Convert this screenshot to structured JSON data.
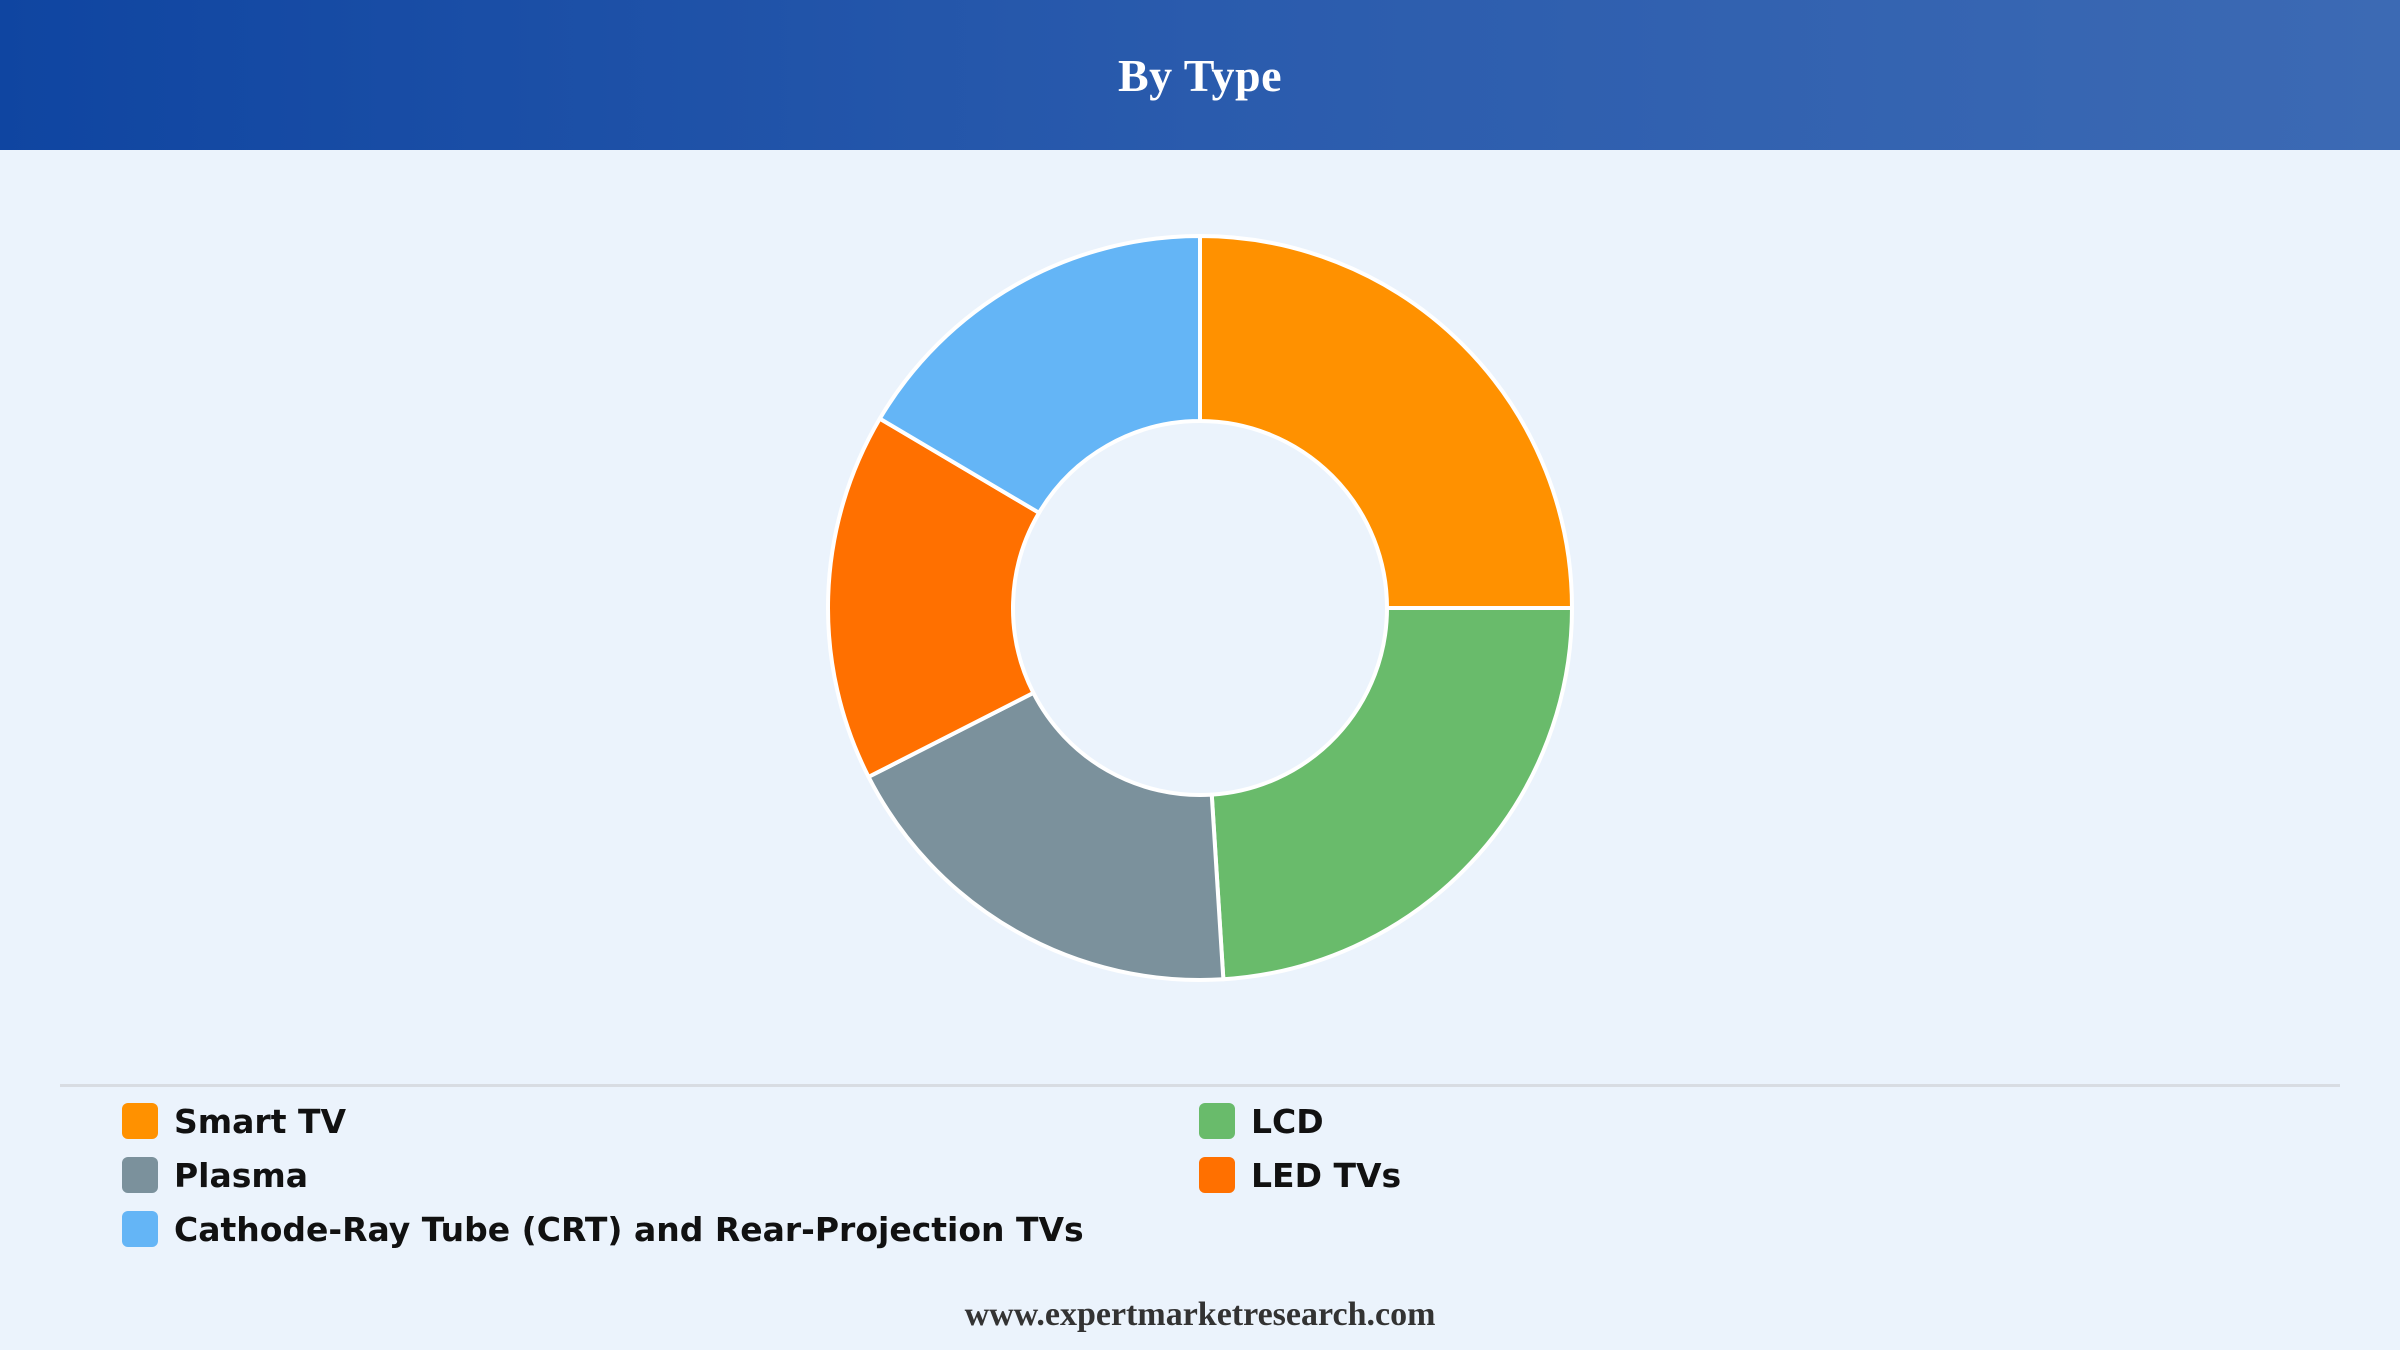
{
  "header": {
    "title": "By Type"
  },
  "chart_data": {
    "type": "pie",
    "variant": "donut",
    "categories": [
      "Smart TV",
      "LCD",
      "Plasma",
      "LED TVs",
      "Cathode-Ray Tube (CRT) and Rear-Projection TVs"
    ],
    "values": [
      25,
      24,
      18.5,
      16,
      16.5
    ],
    "colors": [
      "#ff9100",
      "#69bb6b",
      "#7b919c",
      "#ff7000",
      "#64b5f6"
    ],
    "title": "By Type",
    "legend_position": "bottom"
  },
  "legend": {
    "items": [
      {
        "label": "Smart TV",
        "color": "#ff9100"
      },
      {
        "label": "LCD",
        "color": "#69bb6b"
      },
      {
        "label": "Plasma",
        "color": "#7b919c"
      },
      {
        "label": "LED TVs",
        "color": "#ff7000"
      },
      {
        "label": "Cathode-Ray Tube (CRT) and Rear-Projection TVs",
        "color": "#64b5f6"
      }
    ]
  },
  "footer": {
    "source": "www.expertmarketresearch.com"
  }
}
